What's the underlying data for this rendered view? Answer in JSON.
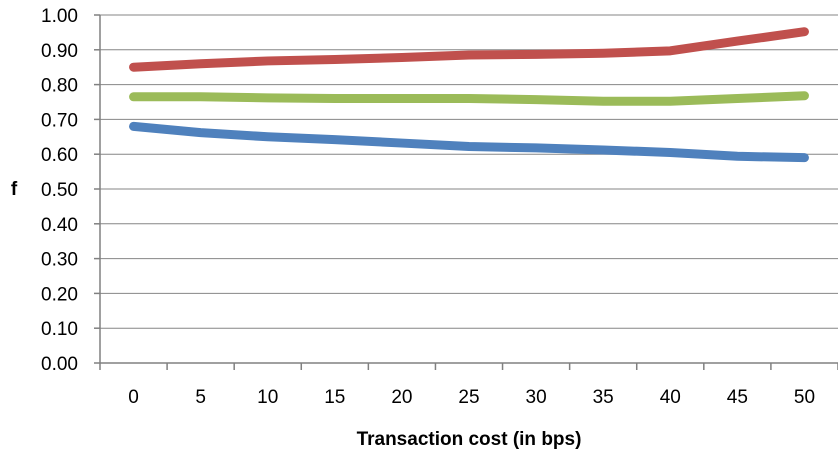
{
  "chart_data": {
    "type": "line",
    "title": "",
    "xlabel": "Transaction cost (in bps)",
    "ylabel": "f",
    "x": [
      0,
      5,
      10,
      15,
      20,
      25,
      30,
      35,
      40,
      45,
      50
    ],
    "x_tick_labels": [
      "0",
      "5",
      "10",
      "15",
      "20",
      "25",
      "30",
      "35",
      "40",
      "45",
      "50"
    ],
    "y_tick_labels": [
      "0.00",
      "0.10",
      "0.20",
      "0.30",
      "0.40",
      "0.50",
      "0.60",
      "0.70",
      "0.80",
      "0.90",
      "1.00"
    ],
    "ylim": [
      0,
      1
    ],
    "grid": "horizontal",
    "legend": "none",
    "series": [
      {
        "color": "#c0504d",
        "values": [
          0.85,
          0.86,
          0.868,
          0.872,
          0.878,
          0.885,
          0.887,
          0.89,
          0.897,
          0.925,
          0.952
        ]
      },
      {
        "color": "#9bbb59",
        "values": [
          0.765,
          0.765,
          0.762,
          0.76,
          0.76,
          0.76,
          0.757,
          0.752,
          0.752,
          0.76,
          0.768
        ]
      },
      {
        "color": "#4f81bd",
        "values": [
          0.68,
          0.662,
          0.65,
          0.642,
          0.632,
          0.622,
          0.618,
          0.612,
          0.605,
          0.594,
          0.59
        ]
      }
    ]
  }
}
